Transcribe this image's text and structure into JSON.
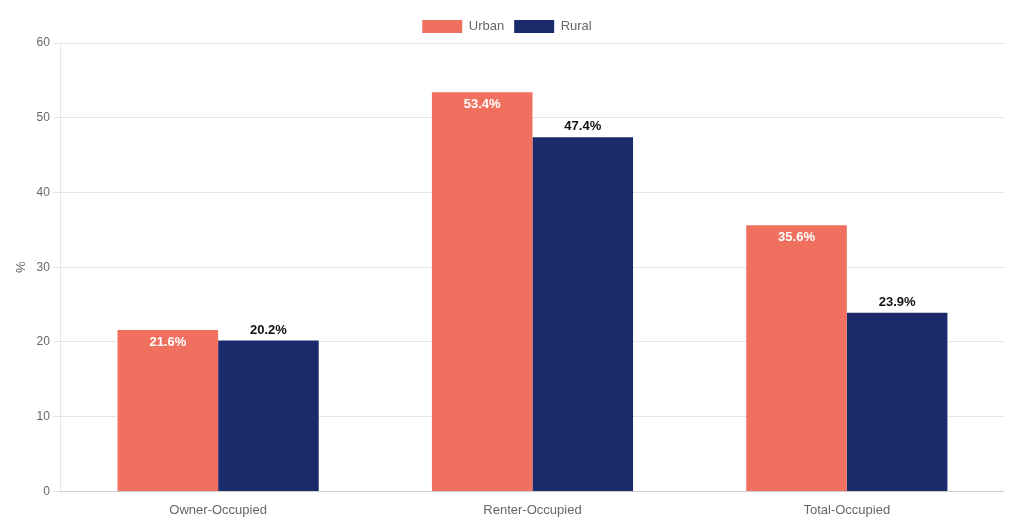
{
  "chart_data": {
    "type": "bar",
    "categories": [
      "Owner-Occupied",
      "Renter-Occupied",
      "Total-Occupied"
    ],
    "series": [
      {
        "name": "Urban",
        "color": "#F07060",
        "values": [
          21.6,
          53.4,
          35.6
        ],
        "value_labels": [
          "21.6%",
          "53.4%",
          "35.6%"
        ]
      },
      {
        "name": "Rural",
        "color": "#1B2A6B",
        "values": [
          20.2,
          47.4,
          23.9
        ],
        "value_labels": [
          "20.2%",
          "47.4%",
          "23.9%"
        ]
      }
    ],
    "ylabel": "%",
    "ylim": [
      0,
      60
    ],
    "yticks": [
      0,
      10,
      20,
      30,
      40,
      50,
      60
    ],
    "grid": true,
    "legend": "top",
    "data_labels": true
  }
}
